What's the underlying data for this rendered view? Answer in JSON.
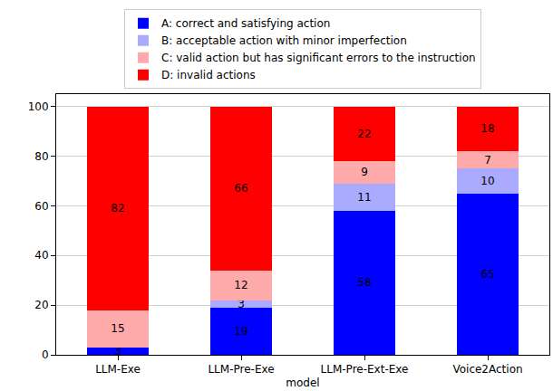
{
  "chart_data": {
    "type": "bar",
    "stacked": true,
    "data_labels": true,
    "grid": true,
    "legend": "top",
    "x_label": "model",
    "categories": [
      "LLM-Exe",
      "LLM-Pre-Exe",
      "LLM-Pre-Ext-Exe",
      "Voice2Action"
    ],
    "series": [
      {
        "name": "A: correct and satisfying action",
        "color": "#0000ff",
        "values": [
          3,
          19,
          58,
          65
        ]
      },
      {
        "name": "B: acceptable action with minor imperfection",
        "color": "#aaaaff",
        "values": [
          null,
          3,
          11,
          10
        ]
      },
      {
        "name": "C: valid action but has significant errors to the instruction",
        "color": "#ffaaaa",
        "values": [
          15,
          12,
          9,
          7
        ]
      },
      {
        "name": "D: invalid actions",
        "color": "#ff0000",
        "values": [
          82,
          66,
          22,
          18
        ]
      }
    ],
    "ylim": [
      0,
      105
    ],
    "yticks": [
      0,
      20,
      40,
      60,
      80,
      100
    ]
  }
}
